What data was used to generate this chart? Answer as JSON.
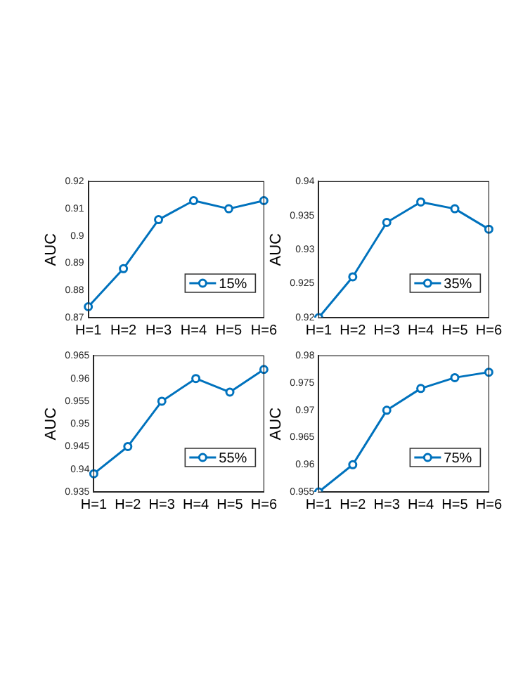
{
  "chart_data": [
    {
      "type": "line",
      "ylabel": "AUC",
      "categories": [
        "H=1",
        "H=2",
        "H=3",
        "H=4",
        "H=5",
        "H=6"
      ],
      "series": [
        {
          "name": "15%",
          "color": "#0072bd",
          "values": [
            0.874,
            0.888,
            0.906,
            0.913,
            0.91,
            0.913
          ]
        }
      ],
      "ylim": [
        0.87,
        0.92
      ],
      "yticks": [
        0.87,
        0.88,
        0.89,
        0.9,
        0.91,
        0.92
      ],
      "grid": false,
      "legend": "bottom right",
      "marker": "circle"
    },
    {
      "type": "line",
      "ylabel": "AUC",
      "categories": [
        "H=1",
        "H=2",
        "H=3",
        "H=4",
        "H=5",
        "H=6"
      ],
      "series": [
        {
          "name": "35%",
          "color": "#0072bd",
          "values": [
            0.92,
            0.926,
            0.934,
            0.937,
            0.936,
            0.933
          ]
        }
      ],
      "ylim": [
        0.92,
        0.94
      ],
      "yticks": [
        0.92,
        0.925,
        0.93,
        0.935,
        0.94
      ],
      "grid": false,
      "legend": "bottom right",
      "marker": "circle"
    },
    {
      "type": "line",
      "ylabel": "AUC",
      "categories": [
        "H=1",
        "H=2",
        "H=3",
        "H=4",
        "H=5",
        "H=6"
      ],
      "series": [
        {
          "name": "55%",
          "color": "#0072bd",
          "values": [
            0.939,
            0.945,
            0.955,
            0.96,
            0.957,
            0.962
          ]
        }
      ],
      "ylim": [
        0.935,
        0.965
      ],
      "yticks": [
        0.935,
        0.94,
        0.945,
        0.95,
        0.955,
        0.96,
        0.965
      ],
      "grid": false,
      "legend": "bottom right",
      "marker": "circle"
    },
    {
      "type": "line",
      "ylabel": "AUC",
      "categories": [
        "H=1",
        "H=2",
        "H=3",
        "H=4",
        "H=5",
        "H=6"
      ],
      "series": [
        {
          "name": "75%",
          "color": "#0072bd",
          "values": [
            0.955,
            0.96,
            0.97,
            0.974,
            0.976,
            0.977
          ]
        }
      ],
      "ylim": [
        0.955,
        0.98
      ],
      "yticks": [
        0.955,
        0.96,
        0.965,
        0.97,
        0.975,
        0.98
      ],
      "grid": false,
      "legend": "bottom right",
      "marker": "circle"
    }
  ]
}
